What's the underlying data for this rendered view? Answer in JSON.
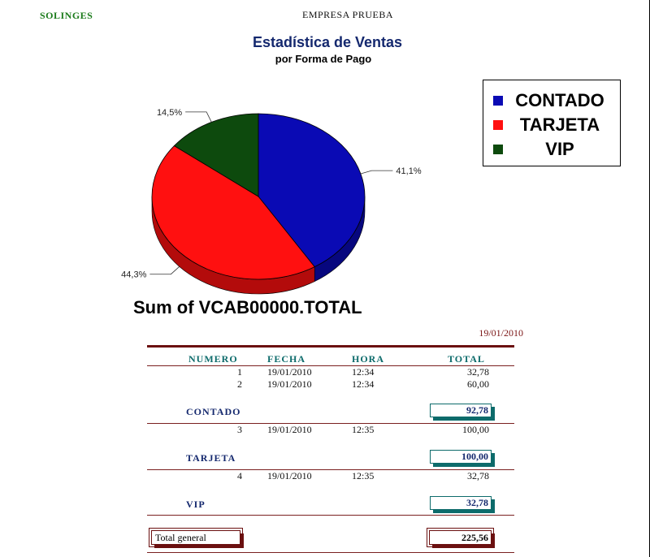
{
  "header": {
    "company_left": "SOLINGES",
    "company_center": "EMPRESA PRUEBA"
  },
  "chart_data": {
    "type": "pie",
    "title": "Estadística de Ventas",
    "subtitle": "por Forma de Pago",
    "slices": [
      {
        "name": "CONTADO",
        "value": 41.1,
        "label": "41,1%",
        "color": "#0a0ab4"
      },
      {
        "name": "TARJETA",
        "value": 44.3,
        "label": "44,3%",
        "color": "#ff1010"
      },
      {
        "name": "VIP",
        "value": 14.5,
        "label": "14,5%",
        "color": "#0d4a0d"
      }
    ],
    "legend_position": "top-right",
    "footer_label": "Sum of VCAB00000.TOTAL"
  },
  "report": {
    "date": "19/01/2010",
    "columns": {
      "numero": "NUMERO",
      "fecha": "FECHA",
      "hora": "HORA",
      "total": "TOTAL"
    },
    "groups": [
      {
        "name": "CONTADO",
        "rows": [
          {
            "numero": "1",
            "fecha": "19/01/2010",
            "hora": "12:34",
            "total": "32,78"
          },
          {
            "numero": "2",
            "fecha": "19/01/2010",
            "hora": "12:34",
            "total": "60,00"
          }
        ],
        "subtotal": "92,78"
      },
      {
        "name": "TARJETA",
        "rows": [
          {
            "numero": "3",
            "fecha": "19/01/2010",
            "hora": "12:35",
            "total": "100,00"
          }
        ],
        "subtotal": "100,00"
      },
      {
        "name": "VIP",
        "rows": [
          {
            "numero": "4",
            "fecha": "19/01/2010",
            "hora": "12:35",
            "total": "32,78"
          }
        ],
        "subtotal": "32,78"
      }
    ],
    "grand_total_label": "Total general",
    "grand_total": "225,56"
  }
}
